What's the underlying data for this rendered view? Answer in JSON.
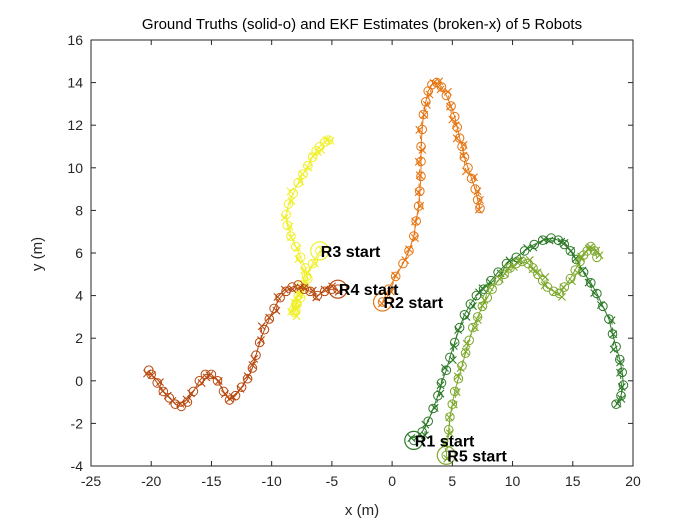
{
  "chart_data": {
    "type": "line",
    "title": "Ground Truths (solid-o) and EKF Estimates (broken-x) of 5 Robots",
    "xlabel": "x (m)",
    "ylabel": "y (m)",
    "xlim": [
      -25,
      20
    ],
    "ylim": [
      -4,
      16
    ],
    "xticks": [
      -25,
      -20,
      -15,
      -10,
      -5,
      0,
      5,
      10,
      15,
      20
    ],
    "yticks": [
      -4,
      -2,
      0,
      2,
      4,
      6,
      8,
      10,
      12,
      14,
      16
    ],
    "grid": false,
    "series": [
      {
        "color": "#2d7a28",
        "x": [
          1.8,
          2.5,
          3.0,
          3.4,
          3.8,
          4.1,
          4.5,
          4.8,
          5.2,
          5.6,
          6.0,
          6.5,
          7.0,
          7.6,
          8.2,
          8.8,
          9.5,
          10.3,
          11.0,
          11.8,
          12.5,
          13.2,
          13.8,
          14.3,
          14.8,
          15.3,
          15.9,
          16.5,
          17.0,
          17.5,
          18.0,
          18.3,
          18.6,
          18.9,
          19.1,
          19.2,
          19.0,
          18.6
        ],
        "y": [
          -2.8,
          -2.4,
          -1.9,
          -1.3,
          -0.7,
          -0.1,
          0.5,
          1.1,
          1.8,
          2.5,
          3.1,
          3.6,
          4.0,
          4.3,
          4.7,
          5.1,
          5.5,
          5.8,
          6.1,
          6.4,
          6.6,
          6.7,
          6.6,
          6.4,
          6.1,
          5.7,
          5.1,
          4.6,
          4.1,
          3.5,
          2.9,
          2.2,
          1.6,
          1.0,
          0.4,
          -0.2,
          -0.7,
          -1.1
        ]
      },
      {
        "color": "#e67512",
        "x": [
          -0.8,
          -0.3,
          0.3,
          0.9,
          1.4,
          1.8,
          2.0,
          2.2,
          2.3,
          2.4,
          2.4,
          2.4,
          2.5,
          2.6,
          2.8,
          3.0,
          3.3,
          3.7,
          4.1,
          4.5,
          4.9,
          5.2,
          5.4,
          5.6,
          5.8,
          6.0,
          6.3,
          6.6,
          6.9,
          7.1,
          7.3
        ],
        "y": [
          3.7,
          4.3,
          4.9,
          5.5,
          6.1,
          6.8,
          7.5,
          8.2,
          8.9,
          9.6,
          10.3,
          11.0,
          11.8,
          12.5,
          13.1,
          13.6,
          13.9,
          14.0,
          13.8,
          13.4,
          12.9,
          12.4,
          11.9,
          11.4,
          11.0,
          10.5,
          10.0,
          9.5,
          9.0,
          8.5,
          8.1
        ]
      },
      {
        "color": "#f0f02a",
        "x": [
          -6.0,
          -6.6,
          -7.1,
          -7.5,
          -7.8,
          -7.9,
          -8.0,
          -8.1,
          -8.2,
          -8.0,
          -7.6,
          -7.3,
          -7.0,
          -7.2,
          -7.6,
          -8.0,
          -8.4,
          -8.7,
          -8.8,
          -8.6,
          -8.2,
          -7.8,
          -7.4,
          -7.0,
          -6.6,
          -6.3,
          -6.0,
          -5.6,
          -5.3
        ],
        "y": [
          6.1,
          5.5,
          4.9,
          4.5,
          4.0,
          3.6,
          3.3,
          3.2,
          3.3,
          3.6,
          3.9,
          4.3,
          4.8,
          5.3,
          5.8,
          6.3,
          6.8,
          7.3,
          7.8,
          8.3,
          8.8,
          9.3,
          9.7,
          10.1,
          10.5,
          10.8,
          11.0,
          11.2,
          11.3
        ]
      },
      {
        "color": "#b84a10",
        "x": [
          -4.5,
          -5.0,
          -5.6,
          -6.2,
          -6.8,
          -7.3,
          -7.8,
          -8.3,
          -8.8,
          -9.3,
          -9.8,
          -10.2,
          -10.6,
          -11.0,
          -11.3,
          -11.6,
          -12.0,
          -12.5,
          -13.0,
          -13.5,
          -14.0,
          -14.5,
          -15.0,
          -15.5,
          -16.0,
          -16.5,
          -17.0,
          -17.5,
          -18.0,
          -18.5,
          -19.0,
          -19.5,
          -20.0,
          -20.2
        ],
        "y": [
          4.3,
          4.3,
          4.2,
          4.0,
          4.2,
          4.3,
          4.5,
          4.4,
          4.2,
          3.9,
          3.4,
          2.9,
          2.4,
          1.8,
          1.2,
          0.6,
          0.1,
          -0.3,
          -0.7,
          -0.9,
          -0.5,
          0.0,
          0.3,
          0.3,
          0.0,
          -0.5,
          -1.0,
          -1.2,
          -1.1,
          -0.8,
          -0.5,
          -0.1,
          0.3,
          0.5
        ]
      },
      {
        "color": "#7ea92e",
        "x": [
          4.5,
          4.6,
          4.7,
          4.8,
          5.0,
          5.2,
          5.5,
          5.8,
          6.1,
          6.4,
          6.7,
          7.1,
          7.5,
          7.9,
          8.3,
          8.8,
          9.3,
          9.8,
          10.3,
          10.8,
          11.3,
          11.7,
          12.1,
          12.5,
          12.9,
          13.4,
          13.9,
          14.3,
          14.8,
          15.2,
          15.6,
          15.9,
          16.2,
          16.5,
          16.8,
          17.0
        ],
        "y": [
          -3.5,
          -2.9,
          -2.3,
          -1.7,
          -1.1,
          -0.5,
          0.1,
          0.7,
          1.3,
          1.9,
          2.5,
          3.0,
          3.5,
          3.9,
          4.3,
          4.7,
          5.0,
          5.3,
          5.5,
          5.6,
          5.5,
          5.3,
          5.0,
          4.7,
          4.4,
          4.2,
          4.1,
          4.4,
          4.8,
          5.2,
          5.6,
          5.9,
          6.1,
          6.3,
          6.1,
          5.8
        ]
      }
    ],
    "annotations": [
      {
        "text": "R1 start",
        "x": 1.8,
        "y": -2.8
      },
      {
        "text": "R2 start",
        "x": -0.8,
        "y": 3.7
      },
      {
        "text": "R3 start",
        "x": -6.0,
        "y": 6.1
      },
      {
        "text": "R4 start",
        "x": -4.5,
        "y": 4.3
      },
      {
        "text": "R5 start",
        "x": 4.5,
        "y": -3.5
      }
    ]
  }
}
